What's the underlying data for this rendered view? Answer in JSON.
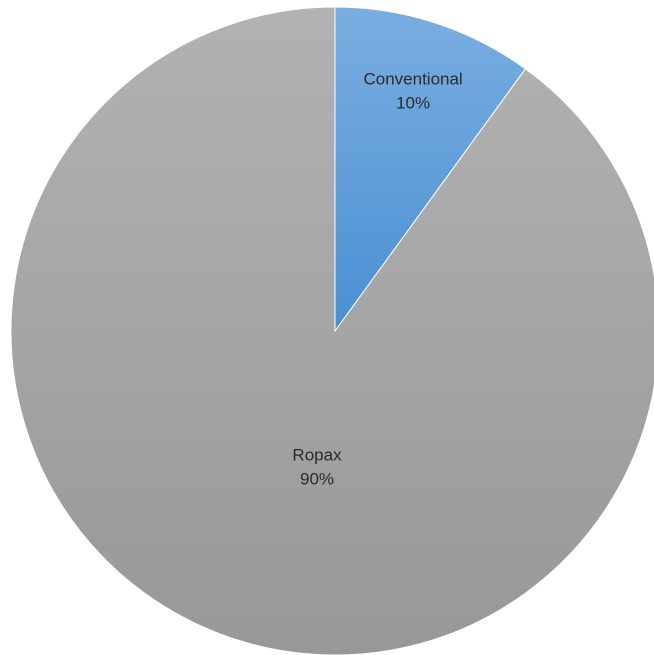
{
  "chart_data": {
    "type": "pie",
    "title": "",
    "slices": [
      {
        "label": "Conventional",
        "value": 10,
        "display": "10%",
        "color": "#5b9bd5"
      },
      {
        "label": "Ropax",
        "value": 90,
        "display": "90%",
        "color": "#a5a5a5"
      }
    ],
    "start_angle_deg": 0,
    "direction": "clockwise",
    "legend": "none",
    "data_labels": "inside"
  }
}
